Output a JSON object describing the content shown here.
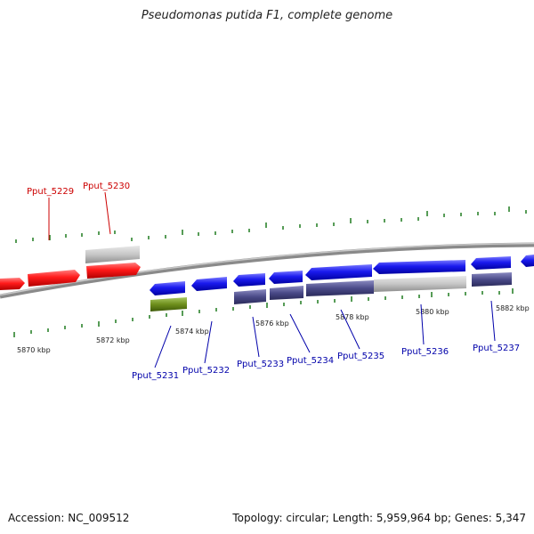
{
  "title": "Pseudomonas putida F1, complete genome",
  "footer": {
    "accession": "Accession: NC_009512",
    "summary": "Topology: circular; Length: 5,959,964 bp; Genes: 5,347"
  },
  "colors": {
    "forward": "#ff1010",
    "reverse": "#1010e6",
    "pseudo": "#c4c4c4",
    "rna": "#4a4a88",
    "other": "#6e8e1c",
    "tick": "#1f7a1f",
    "backbone": "#8a8a8a",
    "label_forward": "#cc0000",
    "label_reverse": "#0000aa"
  },
  "scale_labels": [
    "5870 kbp",
    "5872 kbp",
    "5874 kbp",
    "5876 kbp",
    "5878 kbp",
    "5880 kbp",
    "5882 kbp"
  ],
  "gene_labels": [
    {
      "text": "Pput_5229",
      "strand": "forward"
    },
    {
      "text": "Pput_5230",
      "strand": "forward"
    },
    {
      "text": "Pput_5231",
      "strand": "reverse"
    },
    {
      "text": "Pput_5232",
      "strand": "reverse"
    },
    {
      "text": "Pput_5233",
      "strand": "reverse"
    },
    {
      "text": "Pput_5234",
      "strand": "reverse"
    },
    {
      "text": "Pput_5235",
      "strand": "reverse"
    },
    {
      "text": "Pput_5236",
      "strand": "reverse"
    },
    {
      "text": "Pput_5237",
      "strand": "reverse"
    }
  ]
}
